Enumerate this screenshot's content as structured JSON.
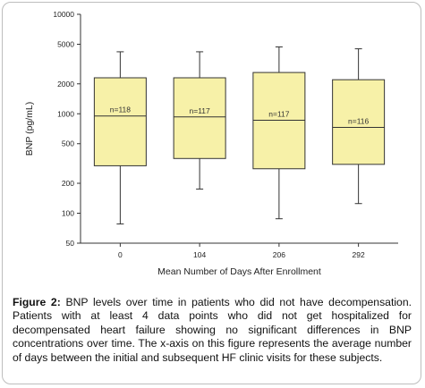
{
  "chart_data": {
    "type": "box",
    "title": "",
    "xlabel": "Mean Number of Days After Enrollment",
    "ylabel": "BNP (pg/mL)",
    "yscale": "log",
    "ylim": [
      50,
      10000
    ],
    "ytick_labels": [
      "10000",
      "5000",
      "2000",
      "1000",
      "500",
      "200",
      "100",
      "50"
    ],
    "categories": [
      "0",
      "104",
      "206",
      "292"
    ],
    "boxes": [
      {
        "category": "0",
        "label": "n=118",
        "whisker_low": 78,
        "q1": 300,
        "median": 950,
        "q3": 2300,
        "whisker_high": 4200
      },
      {
        "category": "104",
        "label": "n=117",
        "whisker_low": 175,
        "q1": 355,
        "median": 930,
        "q3": 2300,
        "whisker_high": 4200
      },
      {
        "category": "206",
        "label": "n=117",
        "whisker_low": 88,
        "q1": 280,
        "median": 860,
        "q3": 2600,
        "whisker_high": 4700
      },
      {
        "category": "292",
        "label": "n=116",
        "whisker_low": 125,
        "q1": 310,
        "median": 730,
        "q3": 2200,
        "whisker_high": 4500
      }
    ],
    "box_color": "#f7f1a8",
    "grid": false
  },
  "caption": {
    "prefix": "Figure 2:",
    "text": " BNP levels over time in patients who did not have decompensation. Patients with at least 4 data points who did not get hospitalized for decompensated heart failure showing no significant differences in BNP concentrations over time. The x-axis on this figure represents the average number of days between the initial and subsequent HF clinic visits for these subjects."
  }
}
